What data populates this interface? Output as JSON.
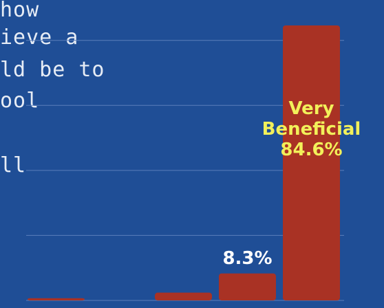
{
  "question": {
    "lines": [
      "how",
      "ieve a",
      "ld be to",
      "ool",
      "",
      "ll"
    ]
  },
  "chart_data": {
    "type": "bar",
    "categories": [
      "",
      "",
      "",
      "Very Beneficial"
    ],
    "values": [
      0.7,
      2.4,
      8.3,
      84.6
    ],
    "value_labels": [
      "",
      "",
      "8.3%",
      "84.6%"
    ],
    "category_labels_shown": [
      "",
      "",
      "",
      "Very Beneficial"
    ],
    "ylim": [
      0,
      92
    ],
    "grid": true,
    "colors": {
      "background": "#1f4e96",
      "bar": "#a93224",
      "gridline": "#5b7fba",
      "value_label": "#ffffff",
      "highlight_label": "#f2f05a"
    }
  }
}
